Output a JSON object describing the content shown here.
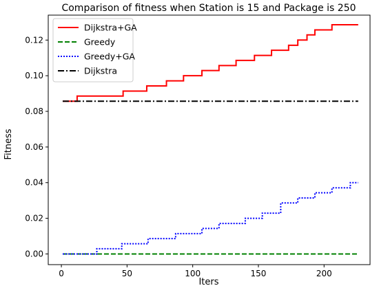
{
  "chart_data": {
    "type": "line",
    "title": "Comparison of fitness when Station is 15 and Package is 250",
    "xlabel": "Iters",
    "ylabel": "Fitness",
    "xlim": [
      -10,
      235
    ],
    "ylim": [
      -0.006,
      0.134
    ],
    "xticks": [
      0,
      50,
      100,
      150,
      200
    ],
    "xtick_labels": [
      "0",
      "50",
      "100",
      "150",
      "200"
    ],
    "yticks": [
      0.0,
      0.02,
      0.04,
      0.06,
      0.08,
      0.1,
      0.12
    ],
    "ytick_labels": [
      "0.00",
      "0.02",
      "0.04",
      "0.06",
      "0.08",
      "0.10",
      "0.12"
    ],
    "grid": false,
    "legend_position": "top-left",
    "series": [
      {
        "name": "Dijkstra+GA",
        "color": "#ff0000",
        "dash": "solid",
        "x": [
          1,
          12,
          12,
          47,
          47,
          65,
          65,
          80,
          80,
          93,
          93,
          107,
          107,
          120,
          120,
          133,
          133,
          147,
          147,
          160,
          160,
          173,
          173,
          180,
          180,
          187,
          187,
          193,
          193,
          200,
          200,
          206,
          206,
          213,
          213,
          226
        ],
        "y": [
          0.0857,
          0.0857,
          0.0886,
          0.0886,
          0.0914,
          0.0914,
          0.0943,
          0.0943,
          0.0971,
          0.0971,
          0.1,
          0.1,
          0.1029,
          0.1029,
          0.1057,
          0.1057,
          0.1086,
          0.1086,
          0.1114,
          0.1114,
          0.1143,
          0.1143,
          0.1171,
          0.1171,
          0.12,
          0.12,
          0.1229,
          0.1229,
          0.1257,
          0.1257,
          0.1257,
          0.1257,
          0.1286,
          0.1286,
          0.1286,
          0.1286
        ]
      },
      {
        "name": "Greedy",
        "color": "#008000",
        "dash": "dashed",
        "x": [
          1,
          226
        ],
        "y": [
          0.0,
          0.0
        ]
      },
      {
        "name": "Greedy+GA",
        "color": "#0000ff",
        "dash": "dotted",
        "x": [
          1,
          27,
          27,
          46,
          46,
          66,
          66,
          87,
          87,
          107,
          107,
          120,
          120,
          140,
          140,
          153,
          153,
          167,
          167,
          173,
          173,
          180,
          180,
          187,
          187,
          193,
          193,
          200,
          200,
          206,
          206,
          213,
          213,
          220,
          220,
          226
        ],
        "y": [
          0.0,
          0.0,
          0.0029,
          0.0029,
          0.0057,
          0.0057,
          0.0086,
          0.0086,
          0.0114,
          0.0114,
          0.0143,
          0.0143,
          0.0171,
          0.0171,
          0.02,
          0.02,
          0.0229,
          0.0229,
          0.0286,
          0.0286,
          0.0286,
          0.0286,
          0.0314,
          0.0314,
          0.0314,
          0.0314,
          0.0343,
          0.0343,
          0.0343,
          0.0343,
          0.0371,
          0.0371,
          0.0371,
          0.0371,
          0.04,
          0.04
        ]
      },
      {
        "name": "Dijkstra",
        "color": "#000000",
        "dash": "dashdot",
        "x": [
          1,
          226
        ],
        "y": [
          0.0857,
          0.0857
        ]
      }
    ]
  }
}
